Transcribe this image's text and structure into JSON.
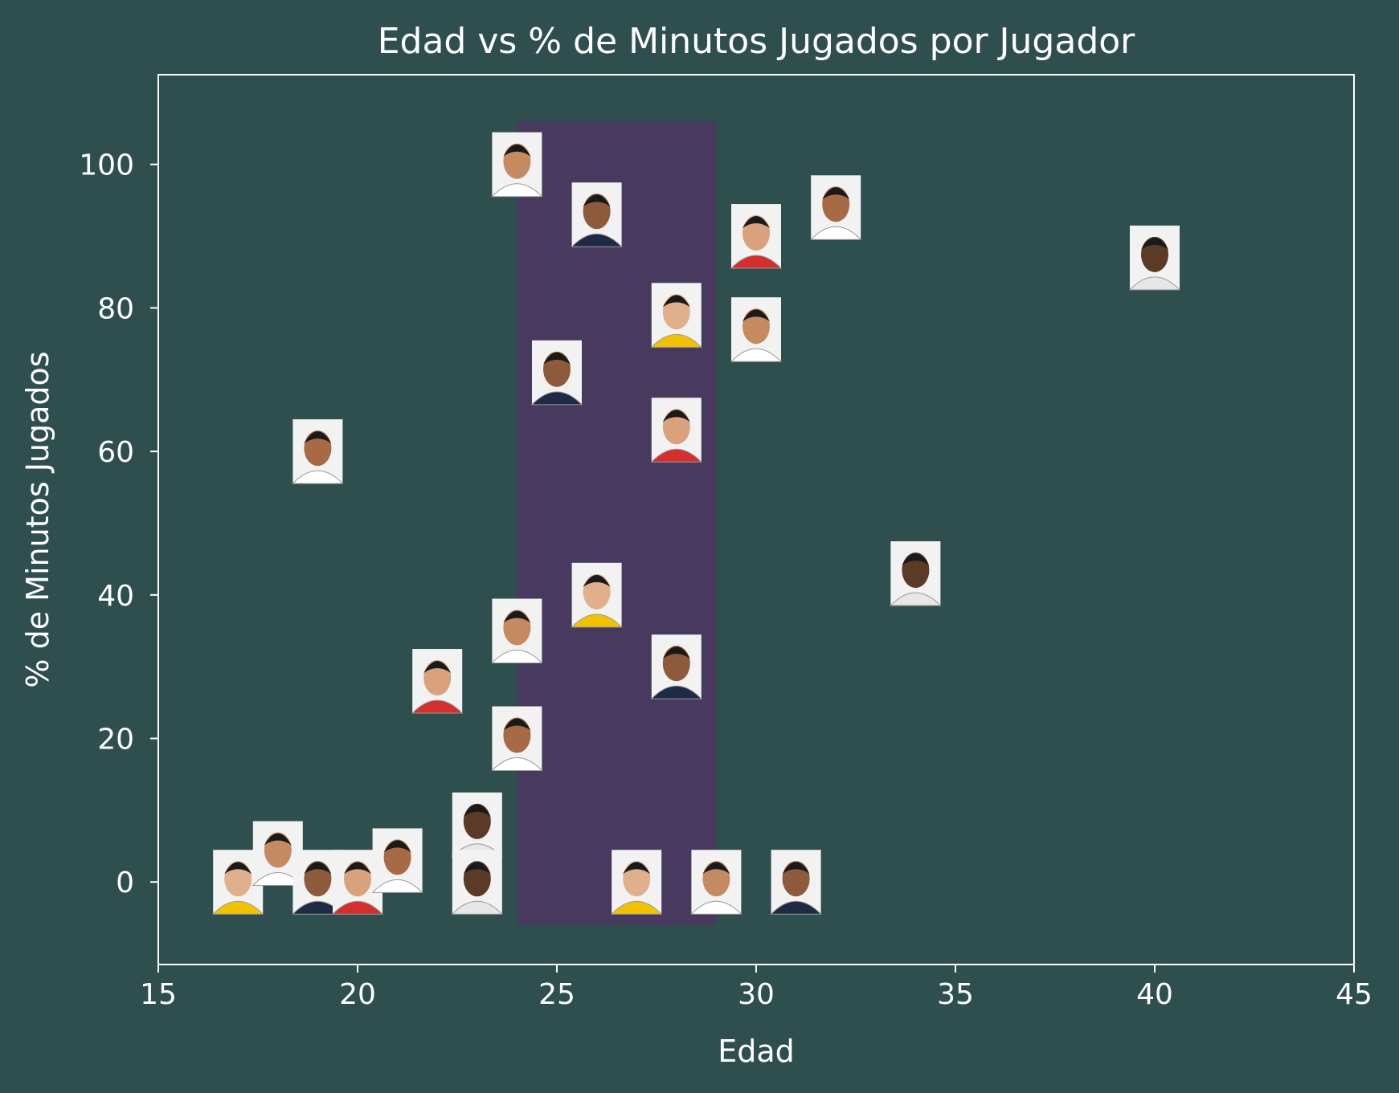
{
  "colors": {
    "background": "#2f4f4f",
    "axes": "#ffffff",
    "text": "#ffffff",
    "band": "#4b3660",
    "photo_bg": "#f2f2f2"
  },
  "chart_data": {
    "type": "scatter",
    "title": "Edad vs % de Minutos Jugados por Jugador",
    "xlabel": "Edad",
    "ylabel": "% de Minutos Jugados",
    "xlim": [
      15,
      45
    ],
    "ylim": [
      -11.5,
      112.5
    ],
    "xticks": [
      15,
      20,
      25,
      30,
      35,
      40,
      45
    ],
    "yticks": [
      0,
      20,
      40,
      60,
      80,
      100
    ],
    "grid": false,
    "marker": "player-photo",
    "highlight_band": {
      "x_start": 24,
      "x_end": 29,
      "y_start": -6,
      "y_end": 106
    },
    "points": [
      {
        "x": 24,
        "y": 100
      },
      {
        "x": 26,
        "y": 93
      },
      {
        "x": 30,
        "y": 90
      },
      {
        "x": 32,
        "y": 94
      },
      {
        "x": 40,
        "y": 87
      },
      {
        "x": 28,
        "y": 79
      },
      {
        "x": 30,
        "y": 77
      },
      {
        "x": 25,
        "y": 71
      },
      {
        "x": 28,
        "y": 63
      },
      {
        "x": 19,
        "y": 60
      },
      {
        "x": 34,
        "y": 43
      },
      {
        "x": 26,
        "y": 40
      },
      {
        "x": 24,
        "y": 35
      },
      {
        "x": 28,
        "y": 30
      },
      {
        "x": 22,
        "y": 28
      },
      {
        "x": 24,
        "y": 20
      },
      {
        "x": 23,
        "y": 8
      },
      {
        "x": 17,
        "y": 0
      },
      {
        "x": 18,
        "y": 4
      },
      {
        "x": 19,
        "y": 0
      },
      {
        "x": 20,
        "y": 0
      },
      {
        "x": 21,
        "y": 3
      },
      {
        "x": 23,
        "y": 0
      },
      {
        "x": 27,
        "y": 0
      },
      {
        "x": 29,
        "y": 0
      },
      {
        "x": 31,
        "y": 0
      }
    ]
  }
}
